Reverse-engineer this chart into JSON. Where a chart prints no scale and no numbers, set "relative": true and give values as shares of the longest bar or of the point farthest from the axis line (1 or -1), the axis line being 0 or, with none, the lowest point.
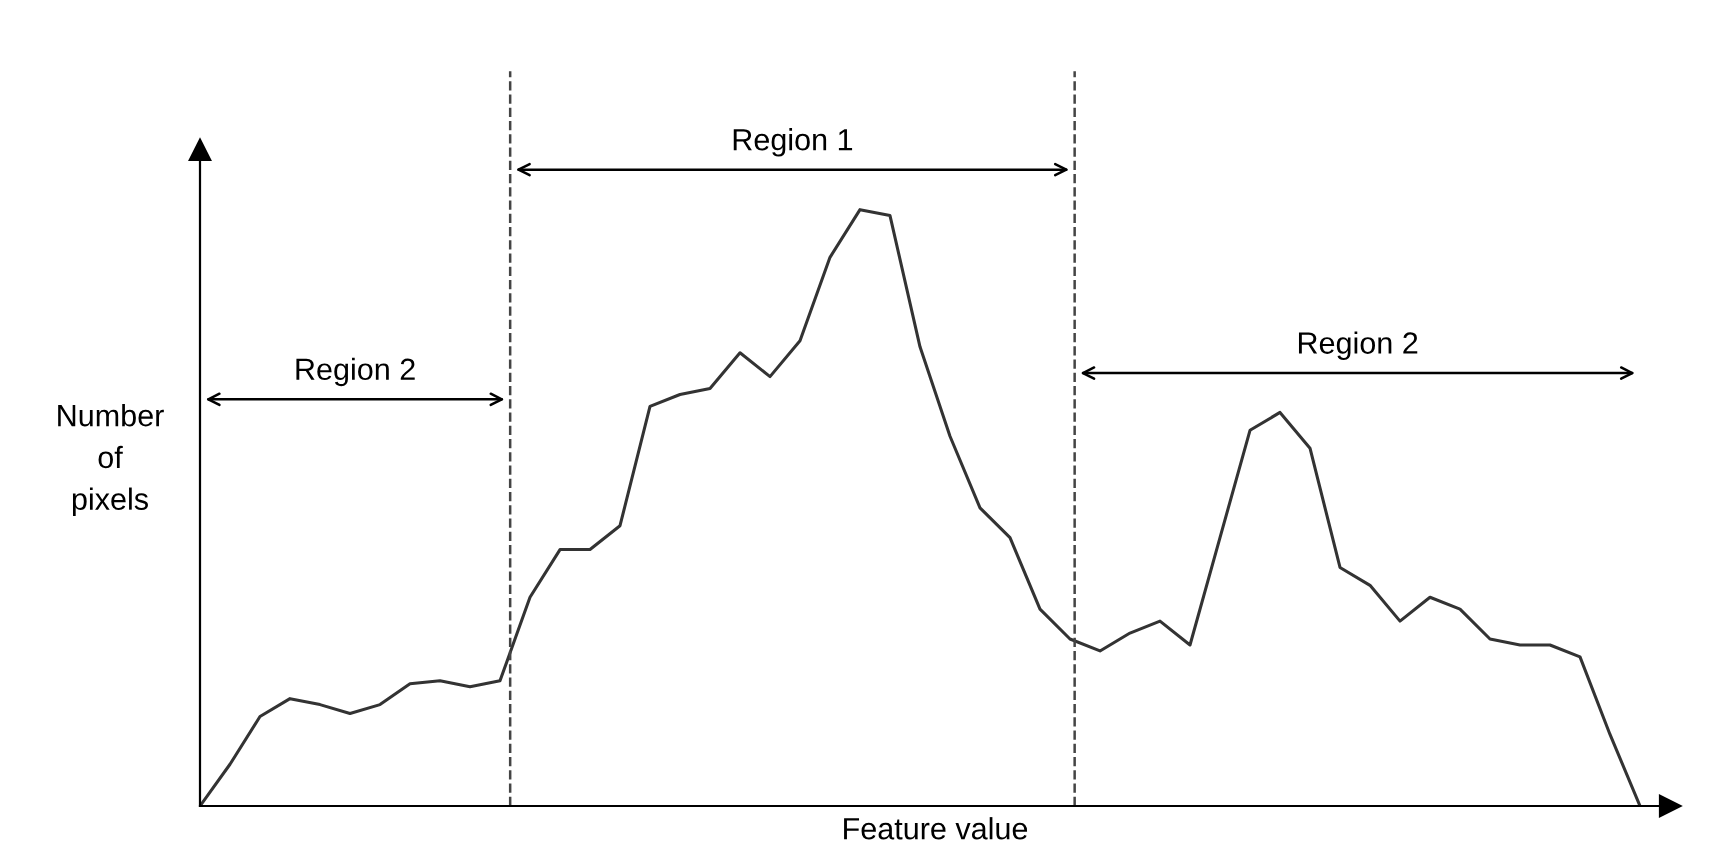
{
  "chart_data": {
    "type": "line",
    "relative": true,
    "xlabel": "Feature value",
    "ylabel": "Number of pixels",
    "color": "#333333",
    "categories": [
      null,
      null,
      null,
      null,
      null,
      null,
      null,
      null,
      null,
      null,
      null,
      null,
      null,
      null,
      null,
      null,
      null,
      null,
      null,
      null,
      null,
      null,
      null,
      null,
      null,
      null,
      null,
      null,
      null,
      null,
      null,
      null,
      null,
      null,
      null,
      null,
      null,
      null,
      null,
      null,
      null,
      null,
      null,
      null,
      null,
      null,
      null,
      null,
      null
    ],
    "values": [
      0,
      0.07,
      0.15,
      0.18,
      0.17,
      0.155,
      0.17,
      0.205,
      0.21,
      0.2,
      0.21,
      0.35,
      0.43,
      0.43,
      0.47,
      0.67,
      0.69,
      0.7,
      0.76,
      0.72,
      0.78,
      0.92,
      1,
      0.99,
      0.77,
      0.62,
      0.5,
      0.45,
      0.33,
      0.28,
      0.26,
      0.29,
      0.31,
      0.27,
      0.45,
      0.63,
      0.66,
      0.6,
      0.4,
      0.37,
      0.31,
      0.35,
      0.33,
      0.28,
      0.27,
      0.27,
      0.25,
      0.12,
      0
    ],
    "annotations": [
      "Region 2",
      "Region 1",
      "Region 2"
    ],
    "marker": "none",
    "line_style": "solid",
    "tick_labels": false
  }
}
